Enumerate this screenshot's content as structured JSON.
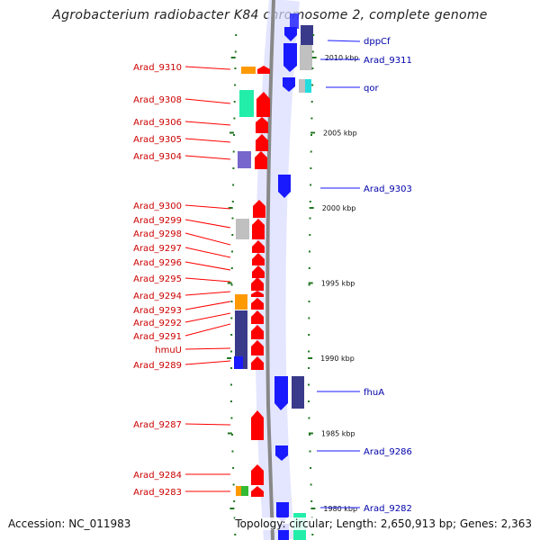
{
  "title": "Agrobacterium radiobacter K84 chromosome 2, complete genome",
  "footer": {
    "accession": "Accession: NC_011983",
    "topology": "Topology: circular; Length: 2,650,913 bp; Genes: 2,363"
  },
  "colors": {
    "forward": "#ff0000",
    "reverse": "#1a1aff",
    "forward_label": "#cc0000",
    "reverse_label": "#0000aa",
    "backbone": "#888888",
    "tick": "#227722",
    "gray": "#c0c0c0",
    "navy": "#3a3a8a",
    "teal": "#22eeaa",
    "cyan": "#22dddd",
    "orange": "#ff9900",
    "green": "#33bb33",
    "purple": "#7766cc"
  },
  "scale": {
    "unit": "kbp",
    "labels": [
      "2010 kbp",
      "2005 kbp",
      "2000 kbp",
      "1995 kbp",
      "1990 kbp",
      "1985 kbp",
      "1980 kbp"
    ]
  },
  "forward_genes": [
    {
      "label": "Arad_9310",
      "kbp": 2009.3
    },
    {
      "label": "Arad_9308",
      "kbp": 2007.7
    },
    {
      "label": "Arad_9306",
      "kbp": 2006.2
    },
    {
      "label": "Arad_9305",
      "kbp": 2005.2
    },
    {
      "label": "Arad_9304",
      "kbp": 2004.2
    },
    {
      "label": "Arad_9300",
      "kbp": 2000.2
    },
    {
      "label": "Arad_9299",
      "kbp": 1999.5
    },
    {
      "label": "Arad_9298",
      "kbp": 1998.7
    },
    {
      "label": "Arad_9297",
      "kbp": 1997.8
    },
    {
      "label": "Arad_9296",
      "kbp": 1997.0
    },
    {
      "label": "Arad_9295",
      "kbp": 1996.1
    },
    {
      "label": "Arad_9294",
      "kbp": 1995.1
    },
    {
      "label": "Arad_9293",
      "kbp": 1994.3
    },
    {
      "label": "Arad_9292",
      "kbp": 1993.5
    },
    {
      "label": "Arad_9291",
      "kbp": 1992.6
    },
    {
      "label": "hmuU",
      "kbp": 1991.4
    },
    {
      "label": "Arad_9289",
      "kbp": 1990.3
    },
    {
      "label": "Arad_9287",
      "kbp": 1985.9
    },
    {
      "label": "Arad_9284",
      "kbp": 1982.3
    },
    {
      "label": "Arad_9283",
      "kbp": 1981.2
    }
  ],
  "reverse_genes": [
    {
      "label": "dppCf",
      "kbp": 2011.5
    },
    {
      "label": "Arad_9311",
      "kbp": 2010.5
    },
    {
      "label": "qor",
      "kbp": 2008.6
    },
    {
      "label": "Arad_9303",
      "kbp": 2002.2
    },
    {
      "label": "fhuA",
      "kbp": 1988.2
    },
    {
      "label": "Arad_9286",
      "kbp": 1984.4
    },
    {
      "label": "Arad_9282",
      "kbp": 1980.2
    }
  ]
}
